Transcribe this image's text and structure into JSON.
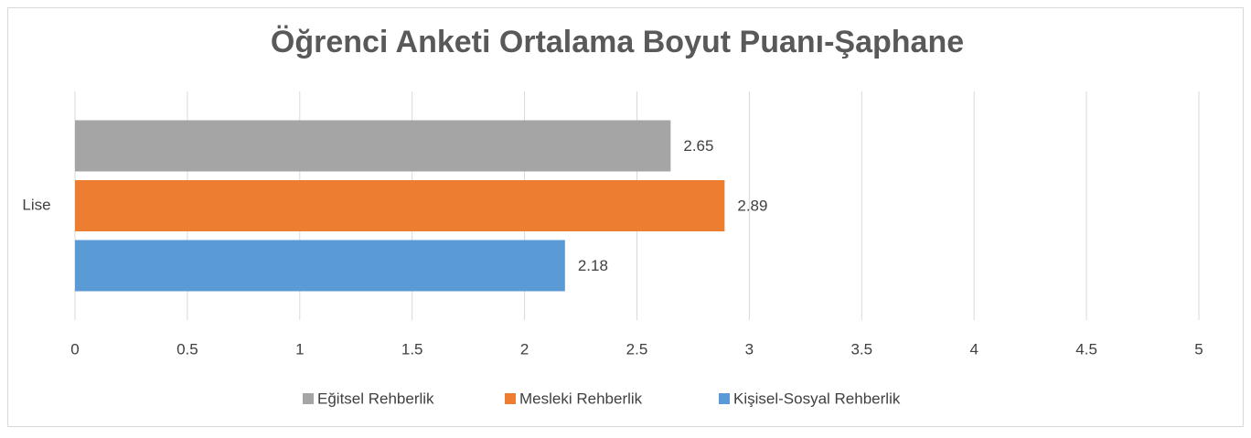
{
  "chart_data": {
    "type": "bar",
    "orientation": "horizontal",
    "title": "Öğrenci Anketi Ortalama Boyut Puanı-Şaphane",
    "categories": [
      "Lise"
    ],
    "series": [
      {
        "name": "Eğitsel Rehberlik",
        "color": "#a5a5a5",
        "values": [
          2.65
        ]
      },
      {
        "name": "Mesleki Rehberlik",
        "color": "#ed7d31",
        "values": [
          2.89
        ]
      },
      {
        "name": "Kişisel-Sosyal Rehberlik",
        "color": "#5b9bd5",
        "values": [
          2.18
        ]
      }
    ],
    "xlim": [
      0,
      5
    ],
    "xticks": [
      0,
      0.5,
      1,
      1.5,
      2,
      2.5,
      3,
      3.5,
      4,
      4.5,
      5
    ],
    "grid": true,
    "legend": "bottom"
  }
}
